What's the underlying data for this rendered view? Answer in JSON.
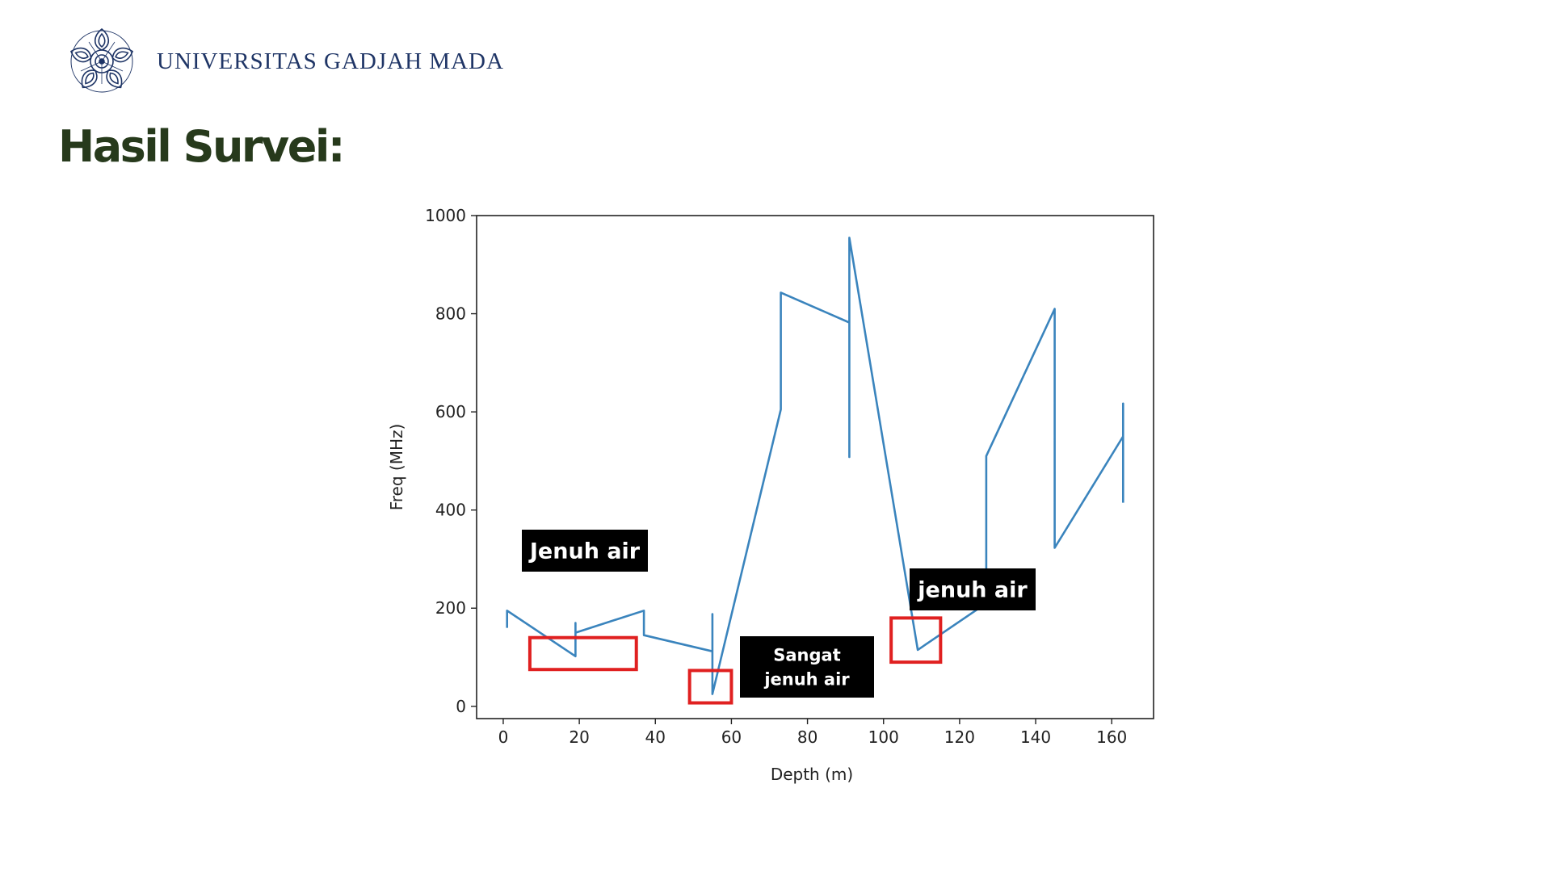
{
  "header": {
    "logo_icon": "ugm-seal-icon",
    "logo_text": "UNIVERSITAS GADJAH MADA"
  },
  "slide": {
    "title": "Hasil Survei:"
  },
  "colors": {
    "series": "#3a84bd",
    "highlight_box": "#e02020",
    "label_bg": "#000000",
    "title": "#273a1c",
    "logo": "#1f3566"
  },
  "chart_data": {
    "type": "line",
    "xlabel": "Depth (m)",
    "ylabel": "Freq (MHz)",
    "xlim": [
      -7,
      171
    ],
    "ylim": [
      -25,
      1000
    ],
    "xticks": [
      0,
      20,
      40,
      60,
      80,
      100,
      120,
      140,
      160
    ],
    "yticks": [
      0,
      200,
      400,
      600,
      800,
      1000
    ],
    "grid": false,
    "series": [
      {
        "x": [
          1,
          1,
          19,
          19,
          19,
          37,
          37,
          37,
          55,
          55,
          55,
          73,
          73,
          91,
          91,
          91,
          109,
          127,
          127,
          127,
          145,
          145,
          163,
          163,
          163
        ],
        "y": [
          160,
          195,
          102,
          170,
          150,
          195,
          170,
          145,
          112,
          188,
          25,
          605,
          843,
          782,
          508,
          955,
          115,
          210,
          290,
          510,
          810,
          323,
          550,
          617,
          415
        ]
      }
    ],
    "highlight_boxes": [
      {
        "x": [
          7,
          35
        ],
        "y": [
          75,
          140
        ]
      },
      {
        "x": [
          49,
          60
        ],
        "y": [
          7,
          73
        ]
      },
      {
        "x": [
          102,
          115
        ],
        "y": [
          90,
          180
        ]
      }
    ],
    "annotations": [
      {
        "id": "jenuh-air-1",
        "lines": [
          "Jenuh air"
        ]
      },
      {
        "id": "sangat-jenuh-air",
        "lines": [
          "Sangat",
          "jenuh air"
        ]
      },
      {
        "id": "jenuh-air-2",
        "lines": [
          "jenuh air"
        ]
      }
    ]
  }
}
